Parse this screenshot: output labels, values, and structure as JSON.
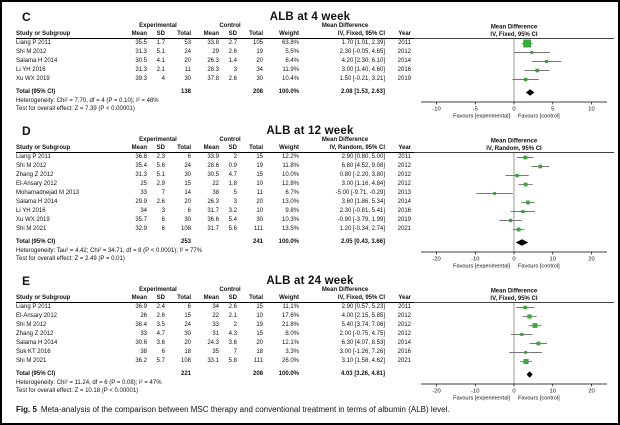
{
  "figure": {
    "caption_label": "Fig. 5",
    "caption_text": "Meta-analysis of the comparison between MSC therapy and conventional treatment in terms of albumin (ALB) level."
  },
  "columns": {
    "study": "Study or Subgroup",
    "mean": "Mean",
    "sd": "SD",
    "total": "Total",
    "weight": "Weight",
    "year": "Year",
    "group_experimental": "Experimental",
    "group_control": "Control",
    "mean_difference": "Mean Difference"
  },
  "forest": {
    "favours_left": "Favours [experimental]",
    "favours_right": "Favours [control]",
    "square_color": "#2eb32e",
    "square_edge": "#1d7a1d",
    "ci_color": "#777777",
    "diamond_color": "#000000"
  },
  "chart_data": [
    {
      "type": "forest",
      "panel_label": "C",
      "title": "ALB at 4 week",
      "effect_label": "IV, Fixed, 95% CI",
      "axis": {
        "min": -12,
        "max": 12,
        "ticks": [
          -10,
          -5,
          0,
          5,
          10
        ]
      },
      "studies": [
        {
          "name": "Liang P 2011",
          "exp": {
            "mean": "35.5",
            "sd": "1.7",
            "total": "53"
          },
          "ctl": {
            "mean": "33.8",
            "sd": "2.7",
            "total": "105"
          },
          "weight": "63.8%",
          "md": 1.7,
          "lo": 1.01,
          "hi": 2.39,
          "md_ci": "1.70 [1.01, 2.39]",
          "year": "2011"
        },
        {
          "name": "Shi M 2012",
          "exp": {
            "mean": "31.3",
            "sd": "5.1",
            "total": "24"
          },
          "ctl": {
            "mean": "29",
            "sd": "2.6",
            "total": "19"
          },
          "weight": "5.5%",
          "md": 2.3,
          "lo": -0.05,
          "hi": 4.65,
          "md_ci": "2.30 [-0.05, 4.65]",
          "year": "2012"
        },
        {
          "name": "Salama H 2014",
          "exp": {
            "mean": "30.5",
            "sd": "4.1",
            "total": "20"
          },
          "ctl": {
            "mean": "26.3",
            "sd": "1.4",
            "total": "20"
          },
          "weight": "8.4%",
          "md": 4.2,
          "lo": 2.3,
          "hi": 6.1,
          "md_ci": "4.20 [2.30, 6.10]",
          "year": "2014"
        },
        {
          "name": "Li YH 2016",
          "exp": {
            "mean": "31.3",
            "sd": "2.1",
            "total": "11"
          },
          "ctl": {
            "mean": "28.3",
            "sd": "3",
            "total": "34"
          },
          "weight": "11.9%",
          "md": 3.0,
          "lo": 1.4,
          "hi": 4.6,
          "md_ci": "3.00 [1.40, 4.60]",
          "year": "2016"
        },
        {
          "name": "Xu WX 2019",
          "exp": {
            "mean": "39.3",
            "sd": "4",
            "total": "30"
          },
          "ctl": {
            "mean": "37.8",
            "sd": "2.6",
            "total": "30"
          },
          "weight": "10.4%",
          "md": 1.5,
          "lo": -0.21,
          "hi": 3.21,
          "md_ci": "1.50 [-0.21, 3.21]",
          "year": "2019"
        }
      ],
      "total": {
        "label": "Total (95% CI)",
        "exp_total": "138",
        "ctl_total": "208",
        "weight": "100.0%",
        "md": 2.08,
        "lo": 1.53,
        "hi": 2.63,
        "md_ci": "2.08 [1.53, 2.63]"
      },
      "heterogeneity": "Heterogeneity: Chi² = 7.70, df = 4 (P = 0.10); I² = 48%",
      "overall": "Test for overall effect: Z = 7.39 (P < 0.00001)"
    },
    {
      "type": "forest",
      "panel_label": "D",
      "title": "ALB at 12 week",
      "effect_label": "IV, Random, 95% CI",
      "axis": {
        "min": -24,
        "max": 24,
        "ticks": [
          -20,
          -10,
          0,
          10,
          20
        ]
      },
      "studies": [
        {
          "name": "Liang P 2011",
          "exp": {
            "mean": "36.8",
            "sd": "2.3",
            "total": "6"
          },
          "ctl": {
            "mean": "33.9",
            "sd": "2",
            "total": "15"
          },
          "weight": "12.2%",
          "md": 2.9,
          "lo": 0.8,
          "hi": 5.0,
          "md_ci": "2.90 [0.80, 5.00]",
          "year": "2011"
        },
        {
          "name": "Shi M 2012",
          "exp": {
            "mean": "35.4",
            "sd": "5.6",
            "total": "24"
          },
          "ctl": {
            "mean": "28.6",
            "sd": "0.9",
            "total": "19"
          },
          "weight": "11.8%",
          "md": 6.8,
          "lo": 4.52,
          "hi": 9.08,
          "md_ci": "6.80 [4.52, 9.08]",
          "year": "2012"
        },
        {
          "name": "Zhang Z 2012",
          "exp": {
            "mean": "31.3",
            "sd": "5.1",
            "total": "30"
          },
          "ctl": {
            "mean": "30.5",
            "sd": "4.7",
            "total": "15"
          },
          "weight": "10.0%",
          "md": 0.8,
          "lo": -2.2,
          "hi": 3.8,
          "md_ci": "0.80 [-2.20, 3.80]",
          "year": "2012"
        },
        {
          "name": "El-Ansary 2012",
          "exp": {
            "mean": "25",
            "sd": "2.9",
            "total": "15"
          },
          "ctl": {
            "mean": "22",
            "sd": "1.8",
            "total": "10"
          },
          "weight": "12.8%",
          "md": 3.0,
          "lo": 1.16,
          "hi": 4.84,
          "md_ci": "3.00 [1.16, 4.84]",
          "year": "2012"
        },
        {
          "name": "Mohamadnejad M 2013",
          "exp": {
            "mean": "33",
            "sd": "7",
            "total": "14"
          },
          "ctl": {
            "mean": "38",
            "sd": "5",
            "total": "11"
          },
          "weight": "6.7%",
          "md": -5.0,
          "lo": -9.71,
          "hi": -0.29,
          "md_ci": "-5.00 [-9.71, -0.29]",
          "year": "2013"
        },
        {
          "name": "Salama H 2014",
          "exp": {
            "mean": "29.9",
            "sd": "2.6",
            "total": "20"
          },
          "ctl": {
            "mean": "26.3",
            "sd": "3",
            "total": "20"
          },
          "weight": "13.0%",
          "md": 3.6,
          "lo": 1.86,
          "hi": 5.34,
          "md_ci": "3.60 [1.86, 5.34]",
          "year": "2014"
        },
        {
          "name": "Li YH 2016",
          "exp": {
            "mean": "34",
            "sd": "3",
            "total": "6"
          },
          "ctl": {
            "mean": "31.7",
            "sd": "3.2",
            "total": "10"
          },
          "weight": "9.8%",
          "md": 2.3,
          "lo": -0.81,
          "hi": 5.41,
          "md_ci": "2.30 [-0.81, 5.41]",
          "year": "2016"
        },
        {
          "name": "Xu WX 2019",
          "exp": {
            "mean": "35.7",
            "sd": "6",
            "total": "30"
          },
          "ctl": {
            "mean": "36.6",
            "sd": "5.4",
            "total": "30"
          },
          "weight": "10.3%",
          "md": -0.9,
          "lo": -3.79,
          "hi": 1.99,
          "md_ci": "-0.90 [-3.79, 1.99]",
          "year": "2019"
        },
        {
          "name": "Shi M 2021",
          "exp": {
            "mean": "32.9",
            "sd": "6",
            "total": "108"
          },
          "ctl": {
            "mean": "31.7",
            "sd": "5.6",
            "total": "111"
          },
          "weight": "13.5%",
          "md": 1.2,
          "lo": -0.34,
          "hi": 2.74,
          "md_ci": "1.20 [-0.34, 2.74]",
          "year": "2021"
        }
      ],
      "total": {
        "label": "Total (95% CI)",
        "exp_total": "253",
        "ctl_total": "241",
        "weight": "100.0%",
        "md": 2.05,
        "lo": 0.43,
        "hi": 3.66,
        "md_ci": "2.05 [0.43, 3.66]"
      },
      "heterogeneity": "Heterogeneity: Tau² = 4.42; Chi² = 34.71, df = 8 (P < 0.0001); I² = 77%",
      "overall": "Test for overall effect: Z = 2.49 (P = 0.01)"
    },
    {
      "type": "forest",
      "panel_label": "E",
      "title": "ALB at 24 week",
      "effect_label": "IV, Fixed, 95% CI",
      "axis": {
        "min": -24,
        "max": 24,
        "ticks": [
          -20,
          -10,
          0,
          10,
          20
        ]
      },
      "studies": [
        {
          "name": "Liang P 2011",
          "exp": {
            "mean": "36.9",
            "sd": "2.4",
            "total": "6"
          },
          "ctl": {
            "mean": "34",
            "sd": "2.6",
            "total": "15"
          },
          "weight": "11.1%",
          "md": 2.9,
          "lo": 0.57,
          "hi": 5.23,
          "md_ci": "2.90 [0.57, 5.23]",
          "year": "2011"
        },
        {
          "name": "El-Ansary 2012",
          "exp": {
            "mean": "26",
            "sd": "2.6",
            "total": "15"
          },
          "ctl": {
            "mean": "22",
            "sd": "2.1",
            "total": "10"
          },
          "weight": "17.6%",
          "md": 4.0,
          "lo": 2.15,
          "hi": 5.85,
          "md_ci": "4.00 [2.15, 5.85]",
          "year": "2012"
        },
        {
          "name": "Shi M 2012",
          "exp": {
            "mean": "38.4",
            "sd": "3.5",
            "total": "24"
          },
          "ctl": {
            "mean": "33",
            "sd": "2",
            "total": "19"
          },
          "weight": "21.8%",
          "md": 5.4,
          "lo": 3.74,
          "hi": 7.06,
          "md_ci": "5.40 [3.74, 7.06]",
          "year": "2012"
        },
        {
          "name": "Zhang Z 2012",
          "exp": {
            "mean": "33",
            "sd": "4.7",
            "total": "30"
          },
          "ctl": {
            "mean": "31",
            "sd": "4.3",
            "total": "15"
          },
          "weight": "8.0%",
          "md": 2.0,
          "lo": -0.75,
          "hi": 4.75,
          "md_ci": "2.00 [-0.75, 4.75]",
          "year": "2012"
        },
        {
          "name": "Salama H 2014",
          "exp": {
            "mean": "30.6",
            "sd": "3.6",
            "total": "20"
          },
          "ctl": {
            "mean": "24.3",
            "sd": "3.6",
            "total": "20"
          },
          "weight": "12.1%",
          "md": 6.3,
          "lo": 4.07,
          "hi": 8.53,
          "md_ci": "6.30 [4.07, 8.53]",
          "year": "2014"
        },
        {
          "name": "Suk KT 2016",
          "exp": {
            "mean": "38",
            "sd": "6",
            "total": "18"
          },
          "ctl": {
            "mean": "35",
            "sd": "7",
            "total": "18"
          },
          "weight": "3.3%",
          "md": 3.0,
          "lo": -1.26,
          "hi": 7.26,
          "md_ci": "3.00 [-1.26, 7.26]",
          "year": "2016"
        },
        {
          "name": "Shi M 2021",
          "exp": {
            "mean": "36.2",
            "sd": "5.7",
            "total": "108"
          },
          "ctl": {
            "mean": "33.1",
            "sd": "5.8",
            "total": "111"
          },
          "weight": "26.0%",
          "md": 3.1,
          "lo": 1.58,
          "hi": 4.62,
          "md_ci": "3.10 [1.58, 4.62]",
          "year": "2021"
        }
      ],
      "total": {
        "label": "Total (95% CI)",
        "exp_total": "221",
        "ctl_total": "208",
        "weight": "100.0%",
        "md": 4.03,
        "lo": 3.26,
        "hi": 4.81,
        "md_ci": "4.03 [3.26, 4.81]"
      },
      "heterogeneity": "Heterogeneity: Chi² = 11.24, df = 6 (P = 0.08); I² = 47%",
      "overall": "Test for overall effect: Z = 10.18 (P < 0.00001)"
    }
  ]
}
